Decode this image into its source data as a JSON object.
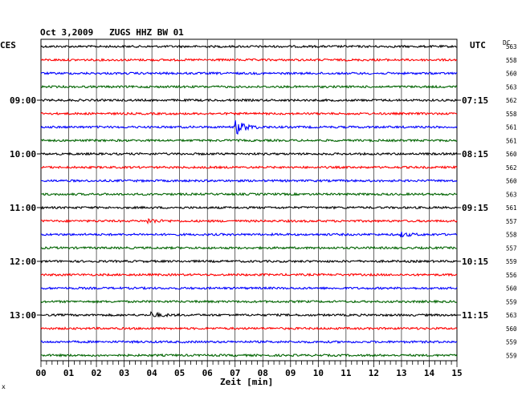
{
  "chart_data": {
    "type": "line",
    "title": "Oct 3,2009   ZUGS HHZ BW 01",
    "left_axis_label": "CES",
    "right_axis_label": "UTC",
    "dc_label": "DC",
    "xlabel": "Zeit [min]",
    "x_ticks": [
      "00",
      "01",
      "02",
      "03",
      "04",
      "05",
      "06",
      "07",
      "08",
      "09",
      "10",
      "11",
      "12",
      "13",
      "14",
      "15"
    ],
    "xlim": [
      0,
      15
    ],
    "trace_colors": [
      "#000000",
      "#ff0000",
      "#0000ff",
      "#006400"
    ],
    "left_time_labels": [
      {
        "row": 4,
        "text": "09:00"
      },
      {
        "row": 8,
        "text": "10:00"
      },
      {
        "row": 12,
        "text": "11:00"
      },
      {
        "row": 16,
        "text": "12:00"
      },
      {
        "row": 20,
        "text": "13:00"
      }
    ],
    "right_time_labels": [
      {
        "row": 4,
        "text": "07:15"
      },
      {
        "row": 8,
        "text": "08:15"
      },
      {
        "row": 12,
        "text": "09:15"
      },
      {
        "row": 16,
        "text": "10:15"
      },
      {
        "row": 20,
        "text": "11:15"
      }
    ],
    "dc_values": [
      "563",
      "558",
      "560",
      "563",
      "562",
      "558",
      "561",
      "561",
      "560",
      "562",
      "560",
      "563",
      "561",
      "557",
      "558",
      "557",
      "559",
      "556",
      "560",
      "559",
      "563",
      "560",
      "559",
      "559"
    ],
    "events": [
      {
        "row": 6,
        "minute": 7.05,
        "amplitude": 9
      },
      {
        "row": 13,
        "minute": 3.9,
        "amplitude": 2.5
      },
      {
        "row": 14,
        "minute": 13.0,
        "amplitude": 2.5
      },
      {
        "row": 20,
        "minute": 4.0,
        "amplitude": 3
      }
    ],
    "num_traces": 24,
    "grid": true
  },
  "corner_mark": "x"
}
